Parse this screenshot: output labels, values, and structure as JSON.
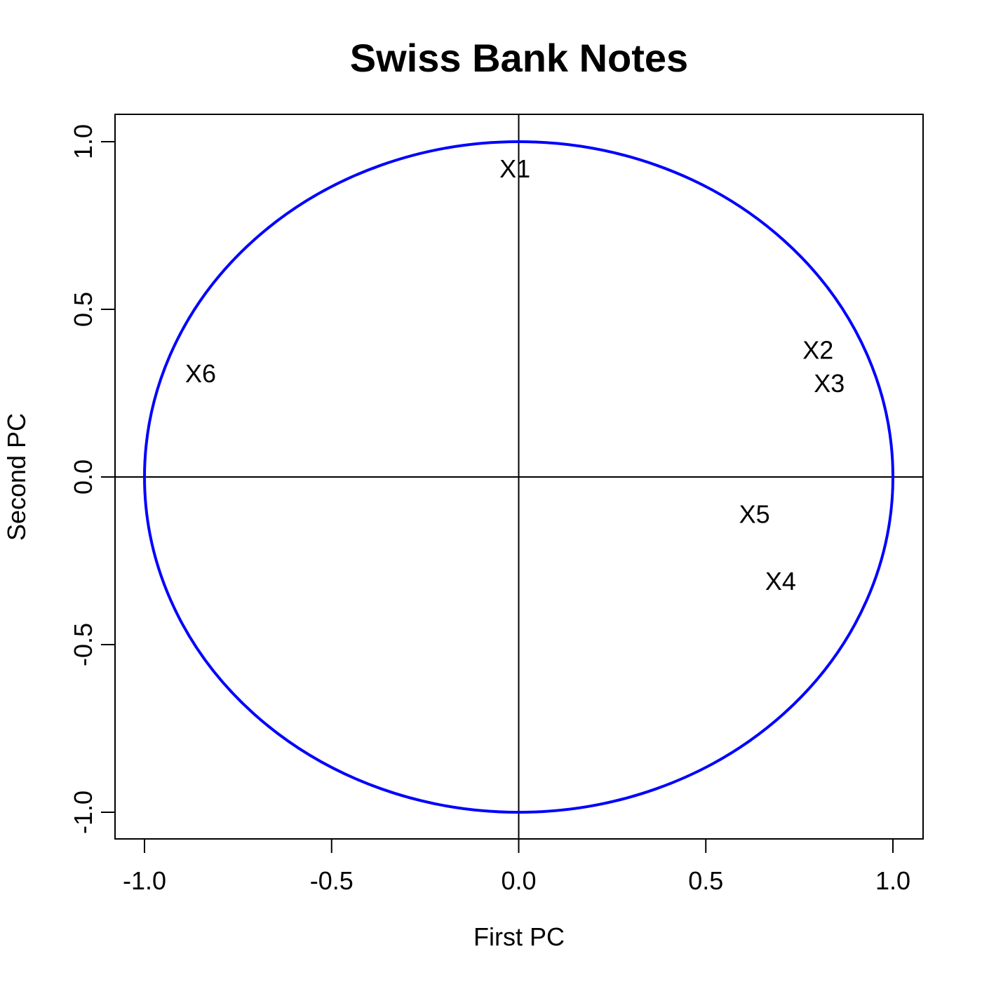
{
  "chart_data": {
    "type": "scatter",
    "title": "Swiss Bank Notes",
    "xlabel": "First PC",
    "ylabel": "Second PC",
    "xlim": [
      -1.0,
      1.0
    ],
    "ylim": [
      -1.0,
      1.0
    ],
    "x_ticks": [
      -1.0,
      -0.5,
      0.0,
      0.5,
      1.0
    ],
    "y_ticks": [
      -1.0,
      -0.5,
      0.0,
      0.5,
      1.0
    ],
    "x_tick_labels": [
      "-1.0",
      "-0.5",
      "0.0",
      "0.5",
      "1.0"
    ],
    "y_tick_labels": [
      "-1.0",
      "-0.5",
      "0.0",
      "0.5",
      "1.0"
    ],
    "grid": false,
    "reference_lines": {
      "x": 0,
      "y": 0
    },
    "circle": {
      "center": [
        0,
        0
      ],
      "radius": 1.0,
      "color": "#0000ff"
    },
    "points": [
      {
        "label": "X1",
        "x": -0.01,
        "y": 0.92
      },
      {
        "label": "X2",
        "x": 0.8,
        "y": 0.38
      },
      {
        "label": "X3",
        "x": 0.83,
        "y": 0.28
      },
      {
        "label": "X4",
        "x": 0.7,
        "y": -0.31
      },
      {
        "label": "X5",
        "x": 0.63,
        "y": -0.11
      },
      {
        "label": "X6",
        "x": -0.85,
        "y": 0.31
      }
    ]
  }
}
